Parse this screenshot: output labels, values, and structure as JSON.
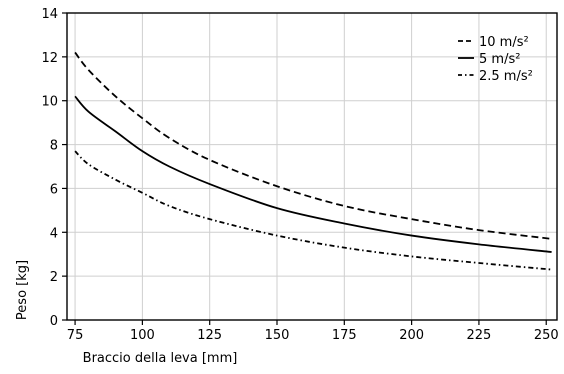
{
  "chart_data": {
    "type": "line",
    "title": "",
    "xlabel": "Braccio della leva [mm]",
    "ylabel": "Peso [kg]",
    "xlim": [
      72,
      254
    ],
    "ylim": [
      0,
      14
    ],
    "x_ticks": [
      75,
      100,
      125,
      150,
      175,
      200,
      225,
      250
    ],
    "y_ticks": [
      0,
      2,
      4,
      6,
      8,
      10,
      12,
      14
    ],
    "grid": true,
    "legend_position": "top-right",
    "series": [
      {
        "name": "10 m/s²",
        "dash": "dashed",
        "color": "#000000",
        "x": [
          75,
          80,
          90,
          100,
          110,
          125,
          150,
          175,
          200,
          225,
          252
        ],
        "y": [
          12.2,
          11.4,
          10.2,
          9.2,
          8.3,
          7.3,
          6.1,
          5.2,
          4.6,
          4.1,
          3.7
        ]
      },
      {
        "name": "5 m/s²",
        "dash": "solid",
        "color": "#000000",
        "x": [
          75,
          80,
          90,
          100,
          110,
          125,
          150,
          175,
          200,
          225,
          252
        ],
        "y": [
          10.2,
          9.5,
          8.6,
          7.7,
          7.0,
          6.2,
          5.1,
          4.4,
          3.85,
          3.45,
          3.1
        ]
      },
      {
        "name": "2.5 m/s²",
        "dash": "dashdot",
        "color": "#000000",
        "x": [
          75,
          80,
          90,
          100,
          110,
          125,
          150,
          175,
          200,
          225,
          252
        ],
        "y": [
          7.7,
          7.1,
          6.4,
          5.8,
          5.2,
          4.6,
          3.85,
          3.3,
          2.9,
          2.6,
          2.3
        ]
      }
    ]
  }
}
